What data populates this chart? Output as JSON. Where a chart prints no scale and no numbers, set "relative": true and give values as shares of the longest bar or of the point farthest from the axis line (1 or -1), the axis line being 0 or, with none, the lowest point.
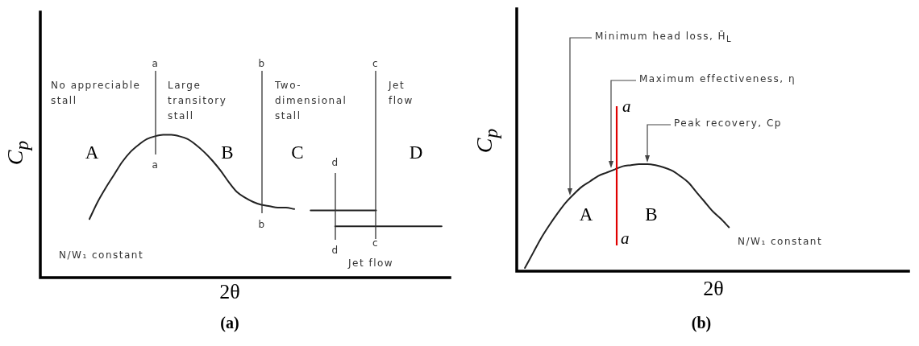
{
  "chart_data": [
    {
      "type": "line",
      "title": "(a)",
      "xlabel": "2θ",
      "ylabel": "C$_{p}$",
      "relative": true,
      "marker": "none",
      "categories": [
        null,
        null,
        null,
        null,
        null,
        null,
        null,
        null,
        null,
        null,
        null,
        null,
        null,
        null,
        null,
        null,
        null,
        null,
        null,
        null,
        null,
        null,
        null,
        null,
        null,
        null,
        null,
        null,
        null,
        null,
        null,
        null,
        null,
        null,
        null,
        null,
        null,
        null,
        null,
        null,
        null,
        null,
        null,
        null,
        null,
        null,
        null,
        null,
        null,
        null,
        null
      ],
      "series": [
        {
          "color": "#222222",
          "values": [
            null,
            null,
            null,
            null,
            null,
            null,
            0.41,
            0.53,
            0.63,
            0.72,
            0.81,
            0.88,
            0.93,
            0.97,
            0.99,
            1.0,
            1.0,
            0.99,
            0.97,
            0.93,
            0.88,
            0.82,
            0.75,
            0.67,
            0.6,
            0.56,
            0.53,
            0.51,
            0.5,
            0.49,
            0.49,
            0.48,
            null,
            0.47,
            0.47,
            0.47,
            0.47,
            0.47,
            0.47,
            0.47,
            0.47,
            0.47,
            null,
            null,
            null,
            null,
            null,
            null,
            null,
            null,
            null
          ]
        },
        {
          "color": "#222222",
          "values": [
            null,
            null,
            null,
            null,
            null,
            null,
            null,
            null,
            null,
            null,
            null,
            null,
            null,
            null,
            null,
            null,
            null,
            null,
            null,
            null,
            null,
            null,
            null,
            null,
            null,
            null,
            null,
            null,
            null,
            null,
            null,
            null,
            null,
            null,
            null,
            null,
            0.36,
            0.36,
            0.36,
            0.36,
            0.36,
            0.36,
            0.36,
            0.36,
            0.36,
            0.36,
            0.36,
            0.36,
            0.36,
            0.36,
            null
          ]
        }
      ],
      "annotations": [
        "No appreciable stall",
        "Large transitory stall",
        "Two-dimensional stall",
        "Jet flow",
        "A",
        "B",
        "C",
        "D",
        "a",
        "a",
        "b",
        "b",
        "c",
        "c",
        "d",
        "d",
        "N/W₁ constant",
        "Jet flow"
      ]
    },
    {
      "type": "line",
      "title": "(b)",
      "xlabel": "2θ",
      "ylabel": "C$_{p}$",
      "relative": true,
      "marker": "none",
      "categories": [
        null,
        null,
        null,
        null,
        null,
        null,
        null,
        null,
        null,
        null,
        null,
        null,
        null,
        null,
        null,
        null,
        null,
        null,
        null,
        null,
        null,
        null,
        null,
        null,
        null,
        null,
        null,
        null,
        null,
        null,
        null,
        null,
        null,
        null,
        null,
        null,
        null,
        null,
        null,
        null,
        null,
        null,
        null,
        null,
        null,
        null,
        null,
        null,
        null
      ],
      "series": [
        {
          "color": "#222222",
          "values": [
            null,
            0.03,
            0.17,
            0.31,
            0.43,
            0.54,
            0.64,
            0.72,
            0.79,
            0.84,
            0.89,
            0.92,
            0.95,
            0.98,
            0.99,
            1.0,
            1.0,
            0.99,
            0.97,
            0.94,
            0.89,
            0.83,
            0.74,
            0.65,
            0.56,
            0.49,
            0.41,
            null,
            null,
            null,
            null,
            null,
            null,
            null,
            null,
            null,
            null,
            null,
            null,
            null,
            null,
            null,
            null,
            null,
            null,
            null,
            null,
            null,
            null
          ]
        }
      ],
      "annotations": [
        "Minimum head loss, H̄$_{L}$",
        "Maximum effectiveness, η",
        "Peak recovery, Cp",
        "a",
        "a",
        "A",
        "B",
        "N/W₁ constant"
      ]
    }
  ]
}
